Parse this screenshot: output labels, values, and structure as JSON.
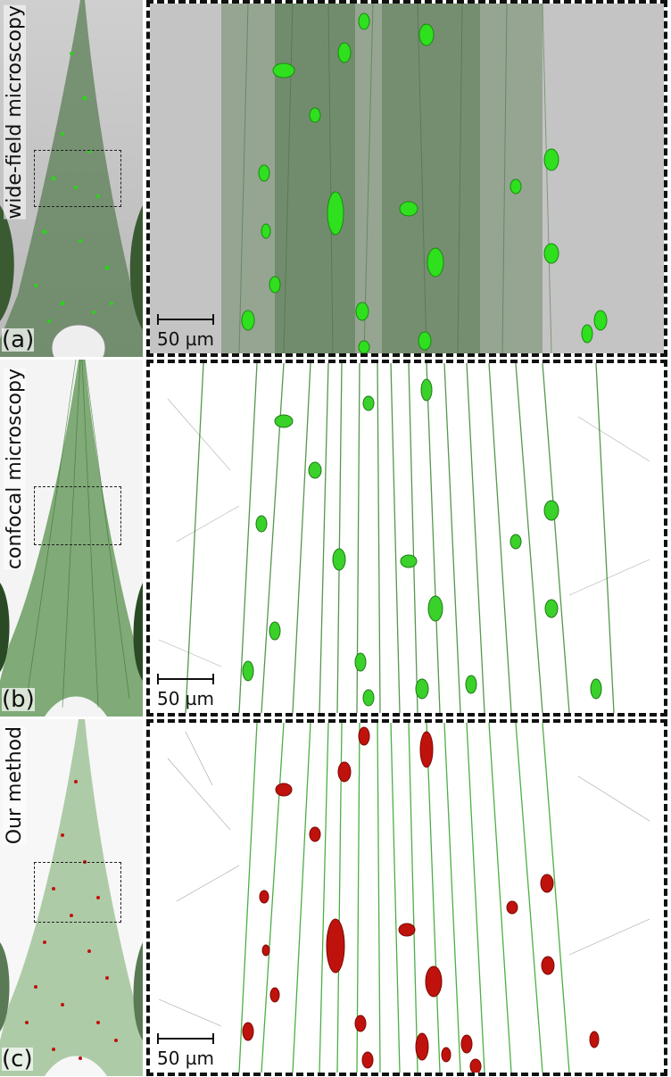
{
  "panels": [
    {
      "tag": "(a)",
      "label": "wide-field microscopy",
      "scale": "50 µm"
    },
    {
      "tag": "(b)",
      "label": "confocal microscopy",
      "scale": "50 µm"
    },
    {
      "tag": "(c)",
      "label": "Our method",
      "scale": "50 µm"
    }
  ],
  "colors": {
    "fiber": "#2e7d32",
    "soma_green": "#31e01f",
    "soma_red": "#c0120c",
    "widefield_bg": "#bdbdbd"
  }
}
